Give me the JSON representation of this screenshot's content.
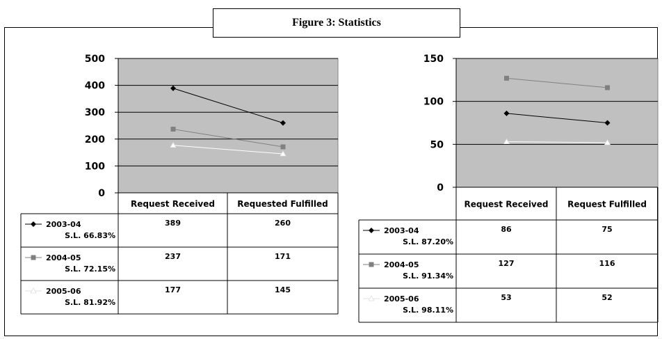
{
  "figure_title": "Figure 3: Statistics",
  "chart_data": [
    {
      "type": "line",
      "categories": [
        "Request Received",
        "Requested Fulfilled"
      ],
      "ylim": [
        0,
        500
      ],
      "yticks": [
        0,
        100,
        200,
        300,
        400,
        500
      ],
      "grid": true,
      "series": [
        {
          "name": "2003-04",
          "sublabel": "S.L. 66.83%",
          "values": [
            389,
            260
          ],
          "labels": [
            "389",
            "260"
          ],
          "color": "#000000",
          "marker": "diamond"
        },
        {
          "name": "2004-05",
          "sublabel": "S.L. 72.15%",
          "values": [
            237,
            171
          ],
          "labels": [
            "237",
            "171"
          ],
          "color": "#808080",
          "marker": "square"
        },
        {
          "name": "2005-06",
          "sublabel": "S.L. 81.92%",
          "values": [
            177,
            145
          ],
          "labels": [
            "177",
            "145"
          ],
          "color": "#ffffff",
          "marker": "triangle"
        }
      ]
    },
    {
      "type": "line",
      "categories": [
        "Request Received",
        "Request Fulfilled"
      ],
      "ylim": [
        0,
        150
      ],
      "yticks": [
        0,
        50,
        100,
        150
      ],
      "grid": true,
      "series": [
        {
          "name": "2003-04",
          "sublabel": "S.L. 87.20%",
          "values": [
            86,
            75
          ],
          "labels": [
            "86",
            "75"
          ],
          "color": "#000000",
          "marker": "diamond"
        },
        {
          "name": "2004-05",
          "sublabel": "S.L. 91.34%",
          "values": [
            127,
            116
          ],
          "labels": [
            "127",
            "116"
          ],
          "color": "#808080",
          "marker": "square"
        },
        {
          "name": "2005-06",
          "sublabel": "S.L. 98.11%",
          "values": [
            53,
            52
          ],
          "labels": [
            "53",
            "52"
          ],
          "color": "#ffffff",
          "marker": "triangle"
        }
      ]
    }
  ]
}
